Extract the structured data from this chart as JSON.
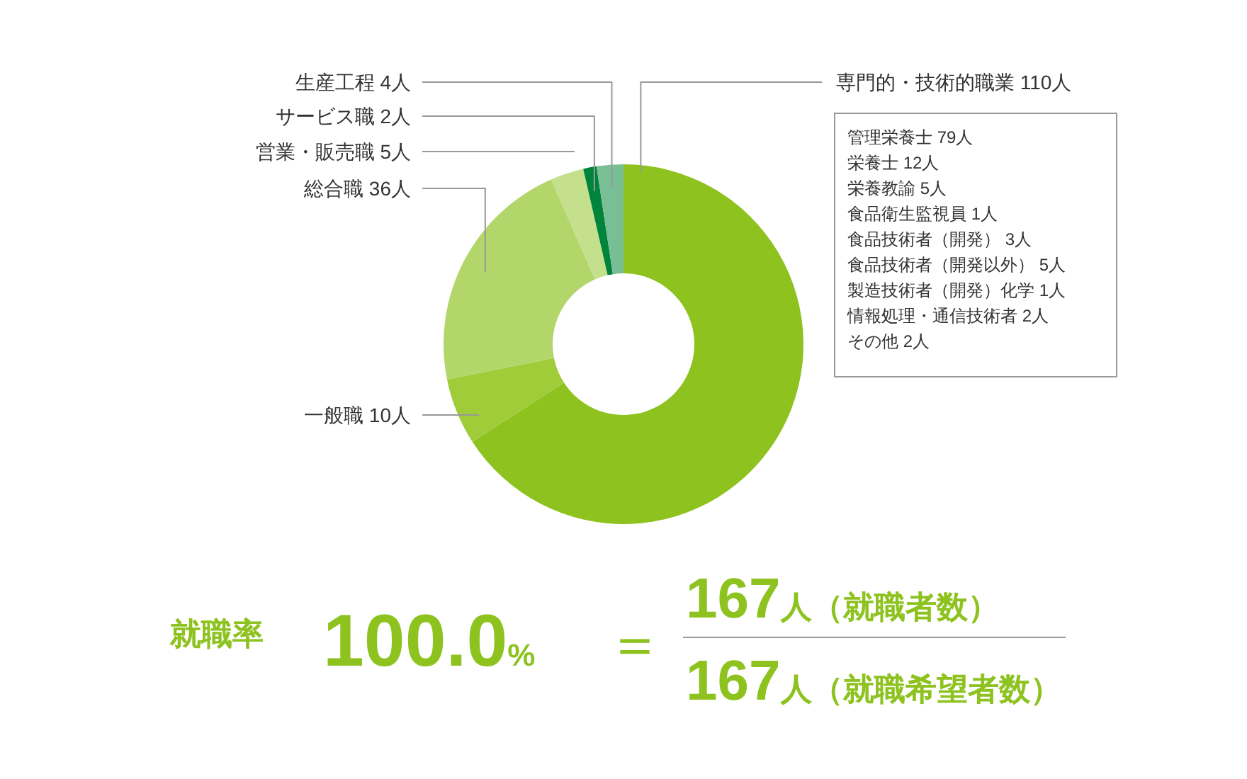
{
  "chart_data": {
    "type": "donut",
    "categories": [
      "専門的・技術的職業 110人",
      "一般職 10人",
      "総合職 36人",
      "営業・販売職 5人",
      "サービス職 2人",
      "生産工程 4人"
    ],
    "values": [
      110,
      10,
      36,
      5,
      2,
      4
    ],
    "colors": [
      "#8dc21f",
      "#a0cc3a",
      "#b2d66a",
      "#c4e08c",
      "#00843c",
      "#78bf96"
    ],
    "annotations": [
      "管理栄養士 79人",
      "栄養士 12人",
      "栄養教諭 5人",
      "食品衛生監視員 1人",
      "食品技術者（開発） 3人",
      "食品技術者（開発以外） 5人",
      "製造技術者（開発）化学 1人",
      "情報処理・通信技術者 2人",
      "その他 2人",
      "就職率",
      "100.0%",
      "＝",
      "167人（就職者数）",
      "167人（就職希望者数）"
    ]
  }
}
